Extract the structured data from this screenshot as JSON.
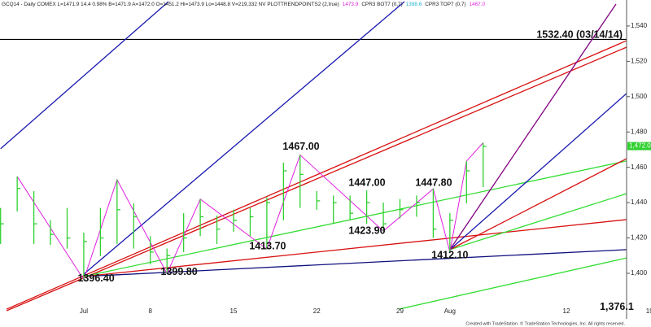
{
  "chart_data": {
    "type": "ohlc",
    "header": [
      {
        "text": "GCQ14 - Daily COMEX L=1471.9 14.4 0.98% B=1471.9 A=1472.0 O=1451.2 Hi=1473.9 Lo=1448.8 V=219,332 NV PLOTTRENDPOINTS2 (2,true)",
        "color": "#222222"
      },
      {
        "text": "1473.9",
        "color": "#e020e0"
      },
      {
        "text": "CPR3 BOT7 (0,7)",
        "color": "#222222"
      },
      {
        "text": "1398.6",
        "color": "#20b0d0"
      },
      {
        "text": "CPR3 TOP7 (0,7)",
        "color": "#222222"
      },
      {
        "text": "1467.0",
        "color": "#e020e0"
      }
    ],
    "footer": "Created with TradeStation. © TradeStation Technologies, Inc. All rights reserved.",
    "categories": [
      null,
      null,
      null,
      null,
      null,
      "Jul",
      null,
      null,
      null,
      "8",
      null,
      null,
      null,
      null,
      "15",
      null,
      null,
      null,
      null,
      "22",
      null,
      null,
      null,
      null,
      "29",
      null,
      null,
      "Aug",
      null,
      null,
      null,
      null,
      null,
      null,
      "12",
      null,
      null,
      null,
      null,
      "19"
    ],
    "high": [
      1437,
      1454.8,
      1446.5,
      1430,
      1437,
      1423,
      1437,
      1453,
      1439.6,
      1421,
      1414,
      1434,
      1442,
      1432.7,
      1436,
      1437,
      1443,
      1462.6,
      1467,
      1446.5,
      1444,
      1444,
      1447,
      1440,
      1442,
      1444,
      1447.8,
      1434,
      1463.5,
      1473.9,
      null,
      null,
      null,
      null,
      null,
      null,
      null,
      null,
      null,
      null
    ],
    "low": [
      1416.6,
      1435,
      1416.6,
      1416,
      1414,
      1396.4,
      1409.7,
      1416.6,
      1414,
      1405,
      1399.8,
      1412,
      1421,
      1416.6,
      1423.5,
      1421,
      1413.7,
      1430,
      1437,
      1436,
      1428,
      1430,
      1428,
      1423.9,
      1431,
      1432,
      1420,
      1412.1,
      1439.6,
      1448.8,
      null,
      null,
      null,
      null,
      null,
      null,
      null,
      null,
      null,
      null
    ],
    "close": [
      1428,
      1448,
      1428,
      1422,
      1420,
      1418,
      1420,
      1436,
      1432,
      1412,
      1410,
      1420,
      1432,
      1425,
      1430,
      1432,
      1440,
      1458,
      1456,
      1441,
      1440,
      1434,
      1440,
      1428,
      1436,
      1440,
      1425,
      1430,
      1458,
      1471.9,
      null,
      null,
      null,
      null,
      null,
      null,
      null,
      null,
      null,
      null
    ],
    "bar_color": "#2fd02f",
    "ylim": [
      1374.2,
      1554.7
    ],
    "yticks": [
      {
        "value": 1400,
        "label": "1,400"
      },
      {
        "value": 1420,
        "label": "1,420"
      },
      {
        "value": 1440,
        "label": "1,440"
      },
      {
        "value": 1460,
        "label": "1,460"
      },
      {
        "value": 1480,
        "label": "1,480"
      },
      {
        "value": 1500,
        "label": "1,500"
      },
      {
        "value": 1520,
        "label": "1,520"
      },
      {
        "value": 1540,
        "label": "1,540"
      }
    ],
    "last_price": {
      "value": 1472,
      "label": "1,472.0",
      "color": "#2fd02f"
    },
    "hline": {
      "value": 1532.4,
      "label": "1532.40 (03/14/14)",
      "color": "#000000"
    },
    "zigzag": {
      "color": "#e020e0",
      "x": [
        1,
        5,
        7,
        10,
        12,
        16,
        18,
        23,
        26,
        27,
        28,
        29
      ],
      "y": [
        1454.8,
        1396.4,
        1453,
        1399.8,
        1442,
        1413.7,
        1467,
        1423.9,
        1447.8,
        1412.1,
        1463.5,
        1473.9
      ]
    },
    "trendlines": [
      {
        "color": "#1a1ab0",
        "x": [
          0,
          10.09
        ],
        "y": [
          1470.5,
          1553.8
        ]
      },
      {
        "color": "#1a1ab0",
        "x": [
          5,
          24.27
        ],
        "y": [
          1399.5,
          1553.8
        ]
      },
      {
        "color": "#d81010",
        "x": [
          0.36,
          37.62
        ],
        "y": [
          1379.7,
          1531.7
        ]
      },
      {
        "color": "#d81010",
        "x": [
          0.36,
          37.62
        ],
        "y": [
          1378.8,
          1528
        ]
      },
      {
        "color": "#101080",
        "x": [
          5,
          37.62
        ],
        "y": [
          1398.2,
          1413.4
        ]
      },
      {
        "color": "#d81010",
        "x": [
          5,
          37.62
        ],
        "y": [
          1398.2,
          1430.4
        ]
      },
      {
        "color": "#33dd33",
        "x": [
          5,
          37.62
        ],
        "y": [
          1398.2,
          1463.6
        ]
      },
      {
        "color": "#33dd33",
        "x": [
          23.93,
          37.62
        ],
        "y": [
          1379.7,
          1408.7
        ]
      },
      {
        "color": "#33dd33",
        "x": [
          27,
          37.62
        ],
        "y": [
          1413.4,
          1445.1
        ]
      },
      {
        "color": "#d81010",
        "x": [
          27,
          37.62
        ],
        "y": [
          1413.4,
          1464.9
        ]
      },
      {
        "color": "#1a1ab0",
        "x": [
          27,
          37.62
        ],
        "y": [
          1413.4,
          1501.8
        ]
      },
      {
        "color": "#800080",
        "x": [
          27,
          36.98
        ],
        "y": [
          1413.4,
          1552.4
        ]
      }
    ],
    "annotations": [
      {
        "text": "1396.40",
        "x": 5.74,
        "y": 1396.8
      },
      {
        "text": "1399.80",
        "x": 10.73,
        "y": 1400.5
      },
      {
        "text": "1413.70",
        "x": 16.05,
        "y": 1415.2
      },
      {
        "text": "1467.00",
        "x": 18.06,
        "y": 1471.4
      },
      {
        "text": "1447.00",
        "x": 22.02,
        "y": 1451.1
      },
      {
        "text": "1423.90",
        "x": 22.02,
        "y": 1423.9
      },
      {
        "text": "1447.80",
        "x": 26.03,
        "y": 1451.1
      },
      {
        "text": "1412.10",
        "x": 27,
        "y": 1410.1
      },
      {
        "text": "1,376.1",
        "x": 37.03,
        "y": 1380.7
      }
    ]
  }
}
